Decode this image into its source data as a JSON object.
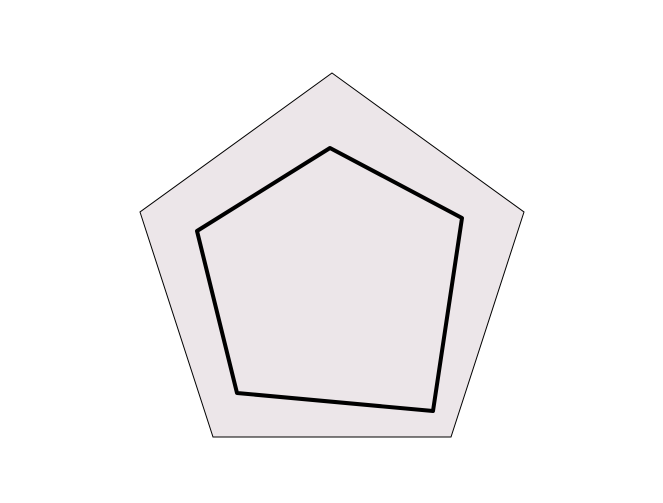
{
  "diagram": {
    "type": "nested-pentagons",
    "colors": {
      "background": "#ffffff",
      "outer_fill": "#ece6e9",
      "outer_stroke": "#000000",
      "inner_stroke": "#000000"
    },
    "shapes": [
      {
        "name": "outer-pentagon",
        "description_shown": ""
      },
      {
        "name": "inner-pentagon",
        "description_shown": ""
      }
    ]
  }
}
